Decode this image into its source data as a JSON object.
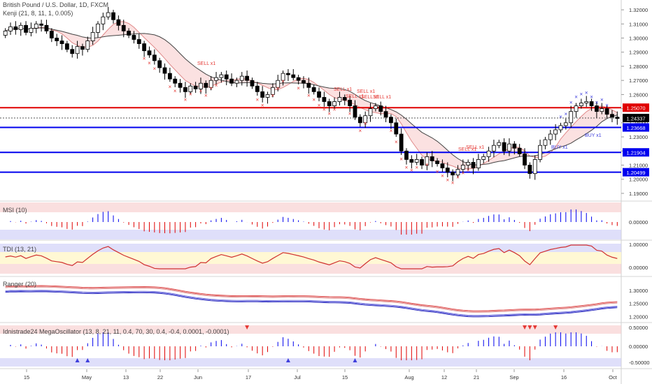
{
  "header": {
    "symbol_title": "British Pound / U.S. Dollar, 1D, FXCM",
    "indicator_title": "Kenji (21, 8, 11, 1, 0.005)"
  },
  "colors": {
    "up_candle": "#ffffff",
    "down_candle": "#000000",
    "red_line": "#e00000",
    "blue_line": "#0000ee",
    "sell_mark": "#e53935",
    "buy_mark": "#3f3fdd",
    "price_badge": "#000000",
    "cloud_red": "#f8c8c8",
    "cloud_green": "#c8e8c8"
  },
  "chart_data": {
    "type": "candlestick",
    "price_axis": [
      "1.32000",
      "1.31000",
      "1.30000",
      "1.29000",
      "1.28000",
      "1.27000",
      "1.26000",
      "1.25000",
      "1.24000",
      "1.23000",
      "1.22000",
      "1.21000",
      "1.20000",
      "1.19000"
    ],
    "price_range": [
      1.188,
      1.323
    ],
    "x_ticks": [
      "15",
      "May",
      "13",
      "22",
      "Jun",
      "17",
      "Jul",
      "15",
      "Aug",
      "12",
      "21",
      "Sep",
      "16",
      "Oct"
    ],
    "levels": [
      {
        "value": 1.2507,
        "label": "1.25070",
        "color": "#e00000"
      },
      {
        "value": 1.23668,
        "label": "1.23668",
        "color": "#0000ee"
      },
      {
        "value": 1.21904,
        "label": "1.21904",
        "color": "#0000ee"
      },
      {
        "value": 1.20499,
        "label": "1.20499",
        "color": "#0000ee"
      }
    ],
    "last_price": {
      "value": 1.24337,
      "label": "1.24337"
    },
    "closes": [
      1.305,
      1.308,
      1.306,
      1.309,
      1.304,
      1.307,
      1.31,
      1.309,
      1.305,
      1.3,
      1.298,
      1.296,
      1.292,
      1.289,
      1.294,
      1.292,
      1.298,
      1.304,
      1.31,
      1.315,
      1.318,
      1.313,
      1.309,
      1.305,
      1.302,
      1.299,
      1.296,
      1.291,
      1.288,
      1.284,
      1.279,
      1.275,
      1.271,
      1.268,
      1.265,
      1.262,
      1.266,
      1.264,
      1.268,
      1.265,
      1.27,
      1.272,
      1.274,
      1.271,
      1.268,
      1.27,
      1.273,
      1.27,
      1.266,
      1.262,
      1.258,
      1.26,
      1.265,
      1.27,
      1.275,
      1.274,
      1.272,
      1.27,
      1.268,
      1.265,
      1.262,
      1.258,
      1.255,
      1.252,
      1.255,
      1.258,
      1.256,
      1.252,
      1.244,
      1.24,
      1.245,
      1.25,
      1.252,
      1.248,
      1.244,
      1.24,
      1.232,
      1.22,
      1.214,
      1.212,
      1.214,
      1.21,
      1.216,
      1.213,
      1.211,
      1.208,
      1.205,
      1.203,
      1.207,
      1.21,
      1.212,
      1.208,
      1.214,
      1.216,
      1.22,
      1.224,
      1.226,
      1.22,
      1.225,
      1.222,
      1.218,
      1.21,
      1.204,
      1.214,
      1.224,
      1.228,
      1.232,
      1.235,
      1.238,
      1.24,
      1.248,
      1.252,
      1.254,
      1.255,
      1.252,
      1.248,
      1.25,
      1.246,
      1.244,
      1.243
    ],
    "candle_types": "mixed up/down daily bars",
    "ribbon": {
      "series": [
        "upper band (red/salmon fill)",
        "lower line (dark gray)"
      ]
    },
    "sell_labels": [
      "SELL x1",
      "SELL x1",
      "SELL x1",
      "SELL x1",
      "SELL x1",
      "SELL x1",
      "SELL x1",
      "SELL x1"
    ],
    "buy_labels": [
      "BUY x1",
      "BUY x1"
    ],
    "panes": [
      {
        "name": "MSI (10)",
        "axis": [
          "0.00000"
        ]
      },
      {
        "name": "TDI (13, 21)",
        "axis": [
          "1.00000",
          "0.00000"
        ]
      },
      {
        "name": "Ranger (20)",
        "axis": [
          "1.30000",
          "1.25000",
          "1.20000"
        ]
      },
      {
        "name": "Idnistrade24 MegaOscillator (13, 8, 21, 11, 0.4, 70, 30, 0.4, -0.4, 0.0001, -0.0001)",
        "axis": [
          "0.50000",
          "0.00000",
          "-0.50000"
        ]
      }
    ]
  }
}
